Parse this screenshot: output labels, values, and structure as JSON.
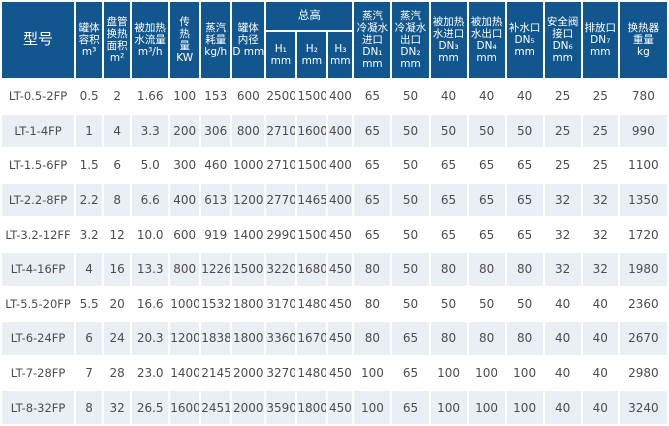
{
  "colors": {
    "header_bg": "#11568f",
    "row_alt_bg": "#e9eff4",
    "header_text": "#ffffff",
    "body_text": "#4d4d4d"
  },
  "table": {
    "group_header_label": "总高",
    "columns": [
      {
        "id": "model",
        "label_lines": [
          "型号"
        ],
        "width": 74
      },
      {
        "id": "tank-volume-m3",
        "label_lines": [
          "罐体",
          "容积",
          "m³"
        ],
        "width": 28
      },
      {
        "id": "coil-heat-area-m2",
        "label_lines": [
          "盘管",
          "换热",
          "面积",
          "m²"
        ],
        "width": 28
      },
      {
        "id": "heated-water-flow-m3h",
        "label_lines": [
          "被加热",
          "水流量",
          "m³/h"
        ],
        "width": 38
      },
      {
        "id": "heat-transfer-kw",
        "label_lines": [
          "传",
          "热",
          "量",
          "KW"
        ],
        "width": 31
      },
      {
        "id": "steam-consumption-kgh",
        "label_lines": [
          "蒸汽",
          "耗量",
          "kg/h"
        ],
        "width": 31
      },
      {
        "id": "tank-inner-diameter-d-mm",
        "label_lines": [
          "罐体",
          "内径",
          "D mm"
        ],
        "width": 34
      },
      {
        "id": "total-height-h1",
        "label_lines": [
          "H₁",
          "mm"
        ],
        "group": true,
        "width": 31
      },
      {
        "id": "total-height-h2",
        "label_lines": [
          "H₂",
          "mm"
        ],
        "group": true,
        "width": 31
      },
      {
        "id": "total-height-h3",
        "label_lines": [
          "H₃",
          "mm"
        ],
        "group": true,
        "width": 26
      },
      {
        "id": "steam-condensate-inlet-dn1",
        "label_lines": [
          "蒸汽",
          "冷凝水",
          "进口",
          "DN₁",
          "mm"
        ],
        "width": 38
      },
      {
        "id": "steam-condensate-outlet-dn2",
        "label_lines": [
          "蒸汽",
          "冷凝水",
          "出口",
          "DN₂",
          "mm"
        ],
        "width": 38
      },
      {
        "id": "heated-water-inlet-dn3",
        "label_lines": [
          "被加热",
          "水进口",
          "DN₃",
          "mm"
        ],
        "width": 38
      },
      {
        "id": "heated-water-outlet-dn4",
        "label_lines": [
          "被加热",
          "水出口",
          "DN₄",
          "mm"
        ],
        "width": 38
      },
      {
        "id": "makeup-water-port-dn5",
        "label_lines": [
          "补水口",
          "DN₅",
          "mm"
        ],
        "width": 38
      },
      {
        "id": "safety-valve-port-dn6",
        "label_lines": [
          "安全阀",
          "接口",
          "DN₆",
          "mm"
        ],
        "width": 38
      },
      {
        "id": "discharge-port-dn7",
        "label_lines": [
          "排放口",
          "DN₇",
          "mm"
        ],
        "width": 37
      },
      {
        "id": "heat-exchanger-weight-kg",
        "label_lines": [
          "换热器",
          "重量",
          "kg"
        ],
        "width": 49
      }
    ],
    "rows": [
      [
        "LT-0.5-2FP",
        "0.5",
        "2",
        "1.66",
        "100",
        "153",
        "600",
        "2500",
        "1500",
        "400",
        "65",
        "50",
        "40",
        "40",
        "40",
        "25",
        "25",
        "780"
      ],
      [
        "LT-1-4FP",
        "1",
        "4",
        "3.3",
        "200",
        "306",
        "800",
        "2710",
        "1600",
        "400",
        "65",
        "50",
        "50",
        "50",
        "50",
        "25",
        "25",
        "990"
      ],
      [
        "LT-1.5-6FP",
        "1.5",
        "6",
        "5.0",
        "300",
        "460",
        "1000",
        "2710",
        "1500",
        "400",
        "65",
        "50",
        "65",
        "65",
        "65",
        "25",
        "25",
        "1100"
      ],
      [
        "LT-2.2-8FP",
        "2.2",
        "8",
        "6.6",
        "400",
        "613",
        "1200",
        "2770",
        "1465",
        "400",
        "65",
        "50",
        "65",
        "65",
        "65",
        "32",
        "32",
        "1350"
      ],
      [
        "LT-3.2-12FF",
        "3.2",
        "12",
        "10.0",
        "600",
        "919",
        "1400",
        "2990",
        "1500",
        "450",
        "65",
        "50",
        "65",
        "65",
        "65",
        "32",
        "32",
        "1720"
      ],
      [
        "LT-4-16FP",
        "4",
        "16",
        "13.3",
        "800",
        "1226",
        "1500",
        "3220",
        "1680",
        "450",
        "80",
        "50",
        "80",
        "80",
        "80",
        "32",
        "32",
        "1980"
      ],
      [
        "LT-5.5-20FP",
        "5.5",
        "20",
        "16.6",
        "1000",
        "1532",
        "1800",
        "3170",
        "1480",
        "450",
        "80",
        "50",
        "50",
        "50",
        "50",
        "40",
        "40",
        "2360"
      ],
      [
        "LT-6-24FP",
        "6",
        "24",
        "20.3",
        "1200",
        "1838",
        "1800",
        "3360",
        "1670",
        "450",
        "80",
        "65",
        "80",
        "80",
        "80",
        "40",
        "40",
        "2670"
      ],
      [
        "LT-7-28FP",
        "7",
        "28",
        "23.0",
        "1400",
        "2145",
        "2000",
        "3270",
        "1480",
        "450",
        "100",
        "65",
        "100",
        "100",
        "100",
        "40",
        "40",
        "2980"
      ],
      [
        "LT-8-32FP",
        "8",
        "32",
        "26.5",
        "1600",
        "2451",
        "2000",
        "3590",
        "1800",
        "450",
        "100",
        "65",
        "100",
        "100",
        "100",
        "40",
        "40",
        "3240"
      ]
    ]
  }
}
